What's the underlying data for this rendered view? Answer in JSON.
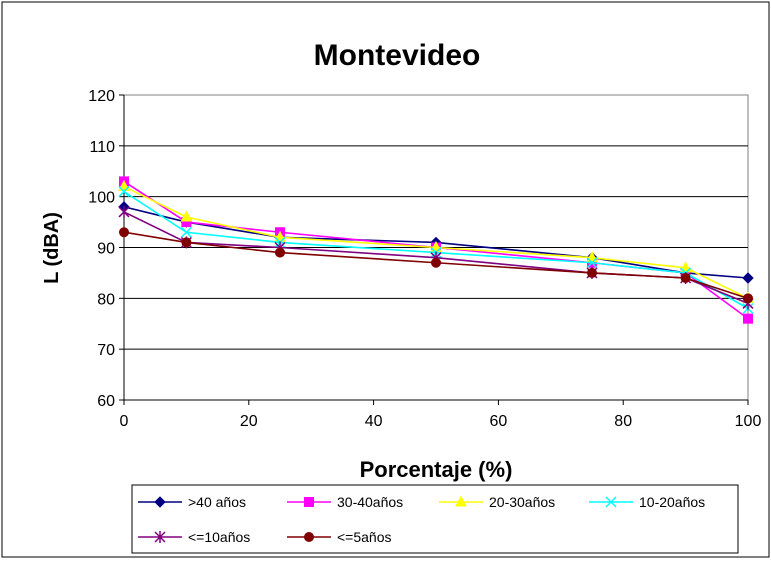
{
  "chart_data": {
    "type": "line",
    "title": "Montevideo",
    "xlabel": "Porcentaje (%)",
    "ylabel": "L (dBA)",
    "x": [
      0,
      10,
      25,
      50,
      75,
      90,
      100
    ],
    "xlim": [
      0,
      100
    ],
    "ylim": [
      60,
      120
    ],
    "xticks": [
      "0",
      "20",
      "40",
      "60",
      "80",
      "100"
    ],
    "yticks": [
      "60",
      "70",
      "80",
      "90",
      "100",
      "110",
      "120"
    ],
    "grid": "horizontal",
    "legend_position": "bottom",
    "series": [
      {
        "name": ">40 años",
        "color": "#000080",
        "marker": "diamond",
        "values": [
          98,
          95,
          92,
          91,
          88,
          85,
          84
        ]
      },
      {
        "name": "30-40años",
        "color": "#FF00FF",
        "marker": "square",
        "values": [
          103,
          95,
          93,
          90,
          87,
          85,
          76
        ]
      },
      {
        "name": "20-30años",
        "color": "#FFFF00",
        "marker": "triangle",
        "values": [
          102,
          96,
          92,
          90,
          88,
          86,
          80
        ]
      },
      {
        "name": "10-20años",
        "color": "#00FFFF",
        "marker": "x",
        "values": [
          101,
          93,
          91,
          89,
          87,
          85,
          78
        ]
      },
      {
        "name": "<=10años",
        "color": "#800080",
        "marker": "star",
        "values": [
          97,
          91,
          90,
          88,
          85,
          84,
          79
        ]
      },
      {
        "name": "<=5años",
        "color": "#800000",
        "marker": "circle",
        "values": [
          93,
          91,
          89,
          87,
          85,
          84,
          80
        ]
      }
    ]
  }
}
